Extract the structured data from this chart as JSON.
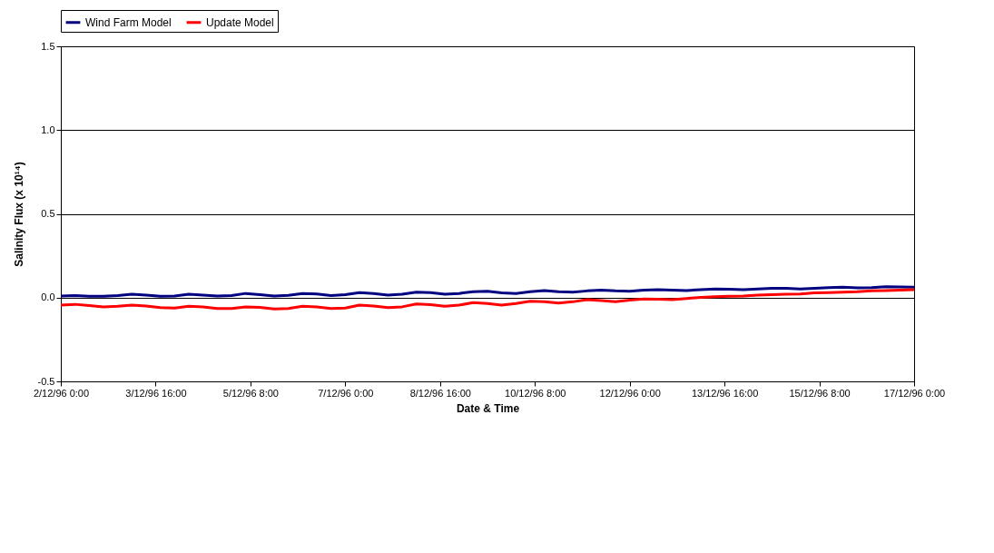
{
  "chart_data": {
    "type": "line",
    "xlabel": "Date & Time",
    "ylabel": "Salinity Flux (x 10¹⁴)",
    "x": [
      "1996-12-02T00:00",
      "1996-12-02T06:00",
      "1996-12-02T12:00",
      "1996-12-02T18:00",
      "1996-12-03T00:00",
      "1996-12-03T06:00",
      "1996-12-03T12:00",
      "1996-12-03T18:00",
      "1996-12-04T00:00",
      "1996-12-04T06:00",
      "1996-12-04T12:00",
      "1996-12-04T18:00",
      "1996-12-05T00:00",
      "1996-12-05T06:00",
      "1996-12-05T12:00",
      "1996-12-05T18:00",
      "1996-12-06T00:00",
      "1996-12-06T06:00",
      "1996-12-06T12:00",
      "1996-12-06T18:00",
      "1996-12-07T00:00",
      "1996-12-07T06:00",
      "1996-12-07T12:00",
      "1996-12-07T18:00",
      "1996-12-08T00:00",
      "1996-12-08T06:00",
      "1996-12-08T12:00",
      "1996-12-08T18:00",
      "1996-12-09T00:00",
      "1996-12-09T06:00",
      "1996-12-09T12:00",
      "1996-12-09T18:00",
      "1996-12-10T00:00",
      "1996-12-10T06:00",
      "1996-12-10T12:00",
      "1996-12-10T18:00",
      "1996-12-11T00:00",
      "1996-12-11T06:00",
      "1996-12-11T12:00",
      "1996-12-11T18:00",
      "1996-12-12T00:00",
      "1996-12-12T06:00",
      "1996-12-12T12:00",
      "1996-12-12T18:00",
      "1996-12-13T00:00",
      "1996-12-13T06:00",
      "1996-12-13T12:00",
      "1996-12-13T18:00",
      "1996-12-14T00:00",
      "1996-12-14T06:00",
      "1996-12-14T12:00",
      "1996-12-14T18:00",
      "1996-12-15T00:00",
      "1996-12-15T06:00",
      "1996-12-15T12:00",
      "1996-12-15T18:00",
      "1996-12-16T00:00",
      "1996-12-16T06:00",
      "1996-12-16T12:00",
      "1996-12-16T18:00",
      "1996-12-17T00:00"
    ],
    "series": [
      {
        "name": "Wind Farm Model",
        "color": "#000080",
        "values": [
          0.01,
          0.012,
          0.008,
          0.008,
          0.012,
          0.02,
          0.015,
          0.008,
          0.01,
          0.02,
          0.015,
          0.01,
          0.012,
          0.025,
          0.018,
          0.01,
          0.014,
          0.025,
          0.022,
          0.012,
          0.018,
          0.03,
          0.025,
          0.015,
          0.02,
          0.032,
          0.03,
          0.02,
          0.025,
          0.035,
          0.038,
          0.028,
          0.025,
          0.035,
          0.042,
          0.035,
          0.032,
          0.04,
          0.045,
          0.04,
          0.038,
          0.045,
          0.048,
          0.045,
          0.042,
          0.048,
          0.052,
          0.05,
          0.048,
          0.052,
          0.056,
          0.055,
          0.052,
          0.056,
          0.06,
          0.062,
          0.058,
          0.06,
          0.065,
          0.064,
          0.062
        ]
      },
      {
        "name": "Update Model",
        "color": "#ff0000",
        "values": [
          -0.045,
          -0.04,
          -0.048,
          -0.055,
          -0.052,
          -0.045,
          -0.05,
          -0.06,
          -0.062,
          -0.052,
          -0.055,
          -0.065,
          -0.065,
          -0.055,
          -0.058,
          -0.068,
          -0.065,
          -0.052,
          -0.055,
          -0.065,
          -0.062,
          -0.045,
          -0.05,
          -0.06,
          -0.055,
          -0.038,
          -0.042,
          -0.052,
          -0.045,
          -0.03,
          -0.035,
          -0.045,
          -0.035,
          -0.022,
          -0.025,
          -0.032,
          -0.025,
          -0.012,
          -0.018,
          -0.025,
          -0.015,
          -0.008,
          -0.01,
          -0.012,
          -0.005,
          0.002,
          0.005,
          0.008,
          0.01,
          0.015,
          0.018,
          0.02,
          0.022,
          0.028,
          0.03,
          0.032,
          0.035,
          0.04,
          0.042,
          0.045,
          0.048
        ]
      }
    ],
    "xlim": [
      "1996-12-02T00:00",
      "1996-12-17T00:00"
    ],
    "xticks": [
      {
        "value": "1996-12-02T00:00",
        "label": "2/12/96 0:00"
      },
      {
        "value": "1996-12-03T16:00",
        "label": "3/12/96 16:00"
      },
      {
        "value": "1996-12-05T08:00",
        "label": "5/12/96 8:00"
      },
      {
        "value": "1996-12-07T00:00",
        "label": "7/12/96 0:00"
      },
      {
        "value": "1996-12-08T16:00",
        "label": "8/12/96 16:00"
      },
      {
        "value": "1996-12-10T08:00",
        "label": "10/12/96 8:00"
      },
      {
        "value": "1996-12-12T00:00",
        "label": "12/12/96 0:00"
      },
      {
        "value": "1996-12-13T16:00",
        "label": "13/12/96 16:00"
      },
      {
        "value": "1996-12-15T08:00",
        "label": "15/12/96 8:00"
      },
      {
        "value": "1996-12-17T00:00",
        "label": "17/12/96 0:00"
      }
    ],
    "ylim": [
      -0.5,
      1.5
    ],
    "yticks": [
      -0.5,
      {
        "value": 0,
        "label": "0.0"
      },
      0.5,
      {
        "value": 1,
        "label": "1.0"
      },
      1.5
    ],
    "grid": "y",
    "legend": "top",
    "marker": "none",
    "line_style": "solid"
  }
}
